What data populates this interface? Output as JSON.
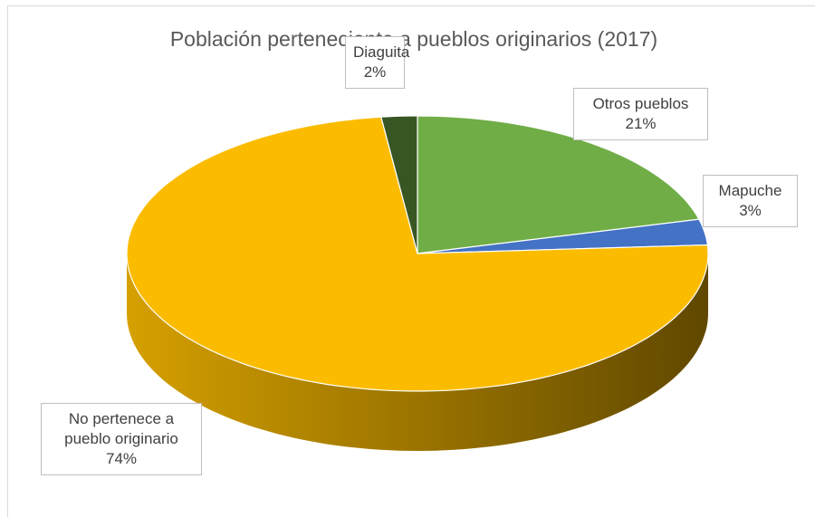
{
  "chart_data": {
    "type": "pie",
    "title": "Población perteneciente a pueblos originarios (2017)",
    "categories": [
      "Otros pueblos",
      "Mapuche",
      "No pertenece a pueblo originario",
      "Diaguita"
    ],
    "values": [
      21,
      3,
      74,
      2
    ],
    "value_labels": [
      "21%",
      "3%",
      "74%",
      "2%"
    ],
    "colors": [
      "#70ad47",
      "#4472c4",
      "#fbbc00",
      "#375623"
    ]
  }
}
